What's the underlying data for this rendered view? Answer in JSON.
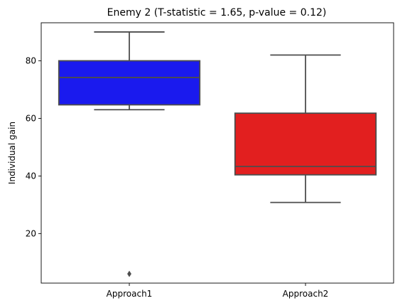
{
  "chart_data": {
    "type": "box",
    "title": "Enemy 2 (T-statistic = 1.65, p-value = 0.12)",
    "xlabel": "",
    "ylabel": "Individual gain",
    "categories": [
      "Approach1",
      "Approach2"
    ],
    "yticks": [
      20,
      40,
      60,
      80
    ],
    "ylim": [
      2.8,
      93.2
    ],
    "grid": false,
    "boxes": [
      {
        "category": "Approach1",
        "color": "#1a1aee",
        "whisker_low": 63,
        "q1": 64.7,
        "median": 74.2,
        "q3": 80,
        "whisker_high": 90,
        "outliers": [
          6
        ]
      },
      {
        "category": "Approach2",
        "color": "#e21f1f",
        "whisker_low": 30.8,
        "q1": 40.4,
        "median": 43.3,
        "q3": 61.8,
        "whisker_high": 82,
        "outliers": []
      }
    ],
    "line_color": "#4d4d4d"
  }
}
